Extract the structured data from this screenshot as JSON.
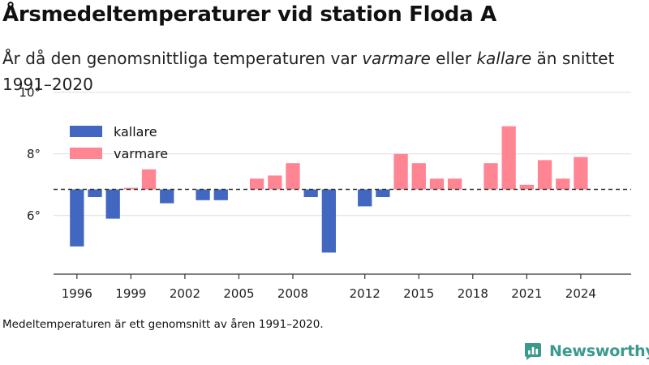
{
  "title": "Årsmedeltemperaturer vid station Floda A",
  "subtitle": {
    "part1": "År då den genomsnittliga temperaturen var ",
    "warm_word": "varmare",
    "part2": " eller ",
    "cold_word": "kallare",
    "part3": " än snittet 1991–2020"
  },
  "footnote": "Medeltemperaturen är ett genomsnitt av åren 1991–2020.",
  "brand": {
    "name": "Newsworthy",
    "logo_icon": "newsworthy-logo-icon",
    "color": "#3a9a8b"
  },
  "chart_data": {
    "type": "bar",
    "baseline": 6.85,
    "ylim": [
      4.1,
      10.1
    ],
    "xlim": [
      1994.7,
      2026.8
    ],
    "y_ticks": [
      6,
      8,
      10
    ],
    "y_tick_labels": [
      "6°",
      "8°",
      "10°"
    ],
    "x_ticks": [
      1996,
      1999,
      2002,
      2005,
      2008,
      2012,
      2015,
      2018,
      2021,
      2024
    ],
    "x_tick_labels": [
      "1996",
      "1999",
      "2002",
      "2005",
      "2008",
      "2012",
      "2015",
      "2018",
      "2021",
      "2024"
    ],
    "legend": [
      {
        "name": "kallare",
        "color": "#4267c0"
      },
      {
        "name": "varmare",
        "color": "#ff8593"
      }
    ],
    "legend_position": "top-left",
    "grid": true,
    "baseline_style": "dashed",
    "colors": {
      "colder": "#4267c0",
      "warmer": "#ff8593",
      "grid": "#dddddd",
      "baseline": "#333333"
    },
    "years": [
      1996,
      1997,
      1998,
      1999,
      2000,
      2001,
      2002,
      2003,
      2004,
      2005,
      2006,
      2007,
      2008,
      2009,
      2010,
      2011,
      2012,
      2013,
      2014,
      2015,
      2016,
      2017,
      2018,
      2019,
      2020,
      2021,
      2022,
      2023,
      2024
    ],
    "values": [
      5.0,
      6.6,
      5.9,
      6.9,
      7.5,
      6.4,
      null,
      6.5,
      6.5,
      null,
      7.2,
      7.3,
      7.7,
      6.6,
      4.8,
      null,
      6.3,
      6.6,
      8.0,
      7.7,
      7.2,
      7.2,
      null,
      7.7,
      8.9,
      7.0,
      7.8,
      7.2,
      7.9
    ]
  }
}
